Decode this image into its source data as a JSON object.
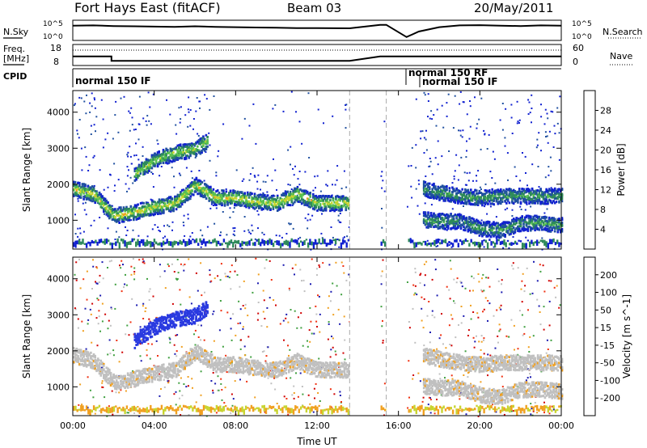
{
  "header": {
    "station": "Fort Hays East (fitACF)",
    "beam": "Beam 03",
    "date": "20/May/2011"
  },
  "params": {
    "nsky_label": "N.Sky",
    "nsearch_label": "N.Search",
    "freq_label_1": "Freq.",
    "freq_label_2": "[MHz]",
    "nave_label": "Nave",
    "cpid_label": "CPID",
    "nsky_ticks": [
      "10^5",
      "10^0"
    ],
    "freq_ticks": [
      "18",
      "8"
    ],
    "nave_ticks": [
      "60",
      "0"
    ],
    "cpid_entries": [
      {
        "label": "normal 150 IF",
        "start": "00:00"
      },
      {
        "label": "normal 150 RF",
        "start": "16:50"
      },
      {
        "label": "normal 150 IF",
        "start": "17:10"
      }
    ],
    "nsky_series": {
      "x": [
        0,
        1,
        2,
        3,
        4,
        5,
        6,
        7,
        8,
        9,
        10,
        11,
        12,
        13.6,
        15.1,
        15.4,
        16.4,
        17,
        18,
        19,
        20,
        21,
        22,
        23,
        24
      ],
      "y": [
        4.5,
        4.6,
        4.4,
        4.3,
        4.2,
        4.1,
        4.3,
        4.1,
        4.0,
        3.9,
        3.8,
        3.7,
        3.7,
        3.6,
        4.8,
        4.8,
        0.6,
        2.5,
        4.0,
        4.6,
        4.7,
        4.5,
        4.4,
        4.6,
        4.5
      ]
    },
    "freq_series": {
      "x": [
        0,
        1.9,
        1.9,
        13.6,
        15.1,
        15.4,
        16.8,
        17.2,
        24
      ],
      "y": [
        13.5,
        13.5,
        10.2,
        10.2,
        13.5,
        13.5,
        13.5,
        13.5,
        13.5
      ]
    },
    "data_gap_hours": [
      [
        13.6,
        15.1
      ],
      [
        15.4,
        16.4
      ]
    ]
  },
  "chart_data": [
    {
      "type": "heatmap",
      "title": "",
      "xlabel": "",
      "ylabel": "Slant Range [km]",
      "x_ticks": [
        "00:00",
        "04:00",
        "08:00",
        "12:00",
        "16:00",
        "20:00",
        "00:00"
      ],
      "y_ticks": [
        "1000",
        "2000",
        "3000",
        "4000"
      ],
      "xlim": [
        0,
        24
      ],
      "ylim": [
        200,
        4600
      ],
      "colorbar_label": "Power [dB]",
      "colorbar_ticks": [
        "4",
        "8",
        "12",
        "16",
        "20",
        "24",
        "28"
      ],
      "colorbar_colors": [
        "#1020d0",
        "#2050a0",
        "#2e8a5a",
        "#58c050",
        "#c8d430",
        "#f0a020",
        "#f06020",
        "#e01010"
      ],
      "bands": [
        {
          "x": [
            0.0,
            1.0,
            2.0,
            3.0,
            4.0,
            5.0,
            6.0,
            7.0,
            8.0,
            9.0,
            10.0,
            11.0,
            12.0,
            13.6
          ],
          "y": [
            1900,
            1750,
            1150,
            1250,
            1400,
            1500,
            2000,
            1650,
            1650,
            1550,
            1500,
            1750,
            1500,
            1500
          ],
          "power_db": 16
        },
        {
          "x": [
            17.2,
            18.0,
            19.0,
            20.0,
            21.0,
            22.0,
            23.0,
            24.0
          ],
          "y": [
            1900,
            1800,
            1700,
            1650,
            1700,
            1700,
            1700,
            1700
          ],
          "power_db": 10
        },
        {
          "x": [
            17.2,
            18.0,
            19.0,
            20.0,
            21.0,
            22.0,
            23.0,
            24.0
          ],
          "y": [
            1050,
            1000,
            1000,
            800,
            750,
            950,
            950,
            900
          ],
          "power_db": 10
        },
        {
          "x": [
            3.0,
            4.0,
            5.0,
            6.0,
            6.6
          ],
          "y": [
            2300,
            2700,
            2900,
            3000,
            3250
          ],
          "power_db": 14
        }
      ],
      "data_gap_hours": [
        [
          13.6,
          15.1
        ],
        [
          15.4,
          16.4
        ]
      ]
    },
    {
      "type": "heatmap",
      "title": "",
      "xlabel": "Time UT",
      "ylabel": "Slant Range [km]",
      "x_ticks": [
        "00:00",
        "04:00",
        "08:00",
        "12:00",
        "16:00",
        "20:00",
        "00:00"
      ],
      "y_ticks": [
        "1000",
        "2000",
        "3000",
        "4000"
      ],
      "xlim": [
        0,
        24
      ],
      "ylim": [
        200,
        4600
      ],
      "colorbar_label": "Velocity [m s^-1]",
      "colorbar_ticks": [
        "200",
        "100",
        "50",
        "15",
        "-15",
        "-50",
        "-100",
        "-200"
      ],
      "colorbar_colors": [
        "#1a1ab0",
        "#2a3ae0",
        "#40a040",
        "#78d050",
        "#c0c0c0",
        "#f0a020",
        "#f07010",
        "#f03010",
        "#d00000"
      ],
      "bands": [
        {
          "x": [
            0.0,
            1.0,
            2.0,
            3.0,
            4.0,
            5.0,
            6.0,
            7.0,
            8.0,
            9.0,
            10.0,
            11.0,
            12.0,
            13.6
          ],
          "y": [
            1900,
            1750,
            1150,
            1250,
            1400,
            1500,
            2000,
            1650,
            1650,
            1550,
            1500,
            1750,
            1500,
            1500
          ],
          "velocity": 0
        },
        {
          "x": [
            17.2,
            18.0,
            19.0,
            20.0,
            21.0,
            22.0,
            23.0,
            24.0
          ],
          "y": [
            1900,
            1800,
            1700,
            1650,
            1700,
            1700,
            1700,
            1700
          ],
          "velocity": 0
        },
        {
          "x": [
            17.2,
            18.0,
            19.0,
            20.0,
            21.0,
            22.0,
            23.0,
            24.0
          ],
          "y": [
            1050,
            1000,
            1000,
            800,
            750,
            950,
            950,
            900
          ],
          "velocity": 0
        },
        {
          "x": [
            3.0,
            4.0,
            5.0,
            6.0,
            6.6
          ],
          "y": [
            2300,
            2700,
            2900,
            3000,
            3250
          ],
          "velocity": 150
        }
      ],
      "data_gap_hours": [
        [
          13.6,
          15.1
        ],
        [
          15.4,
          16.4
        ]
      ]
    }
  ]
}
